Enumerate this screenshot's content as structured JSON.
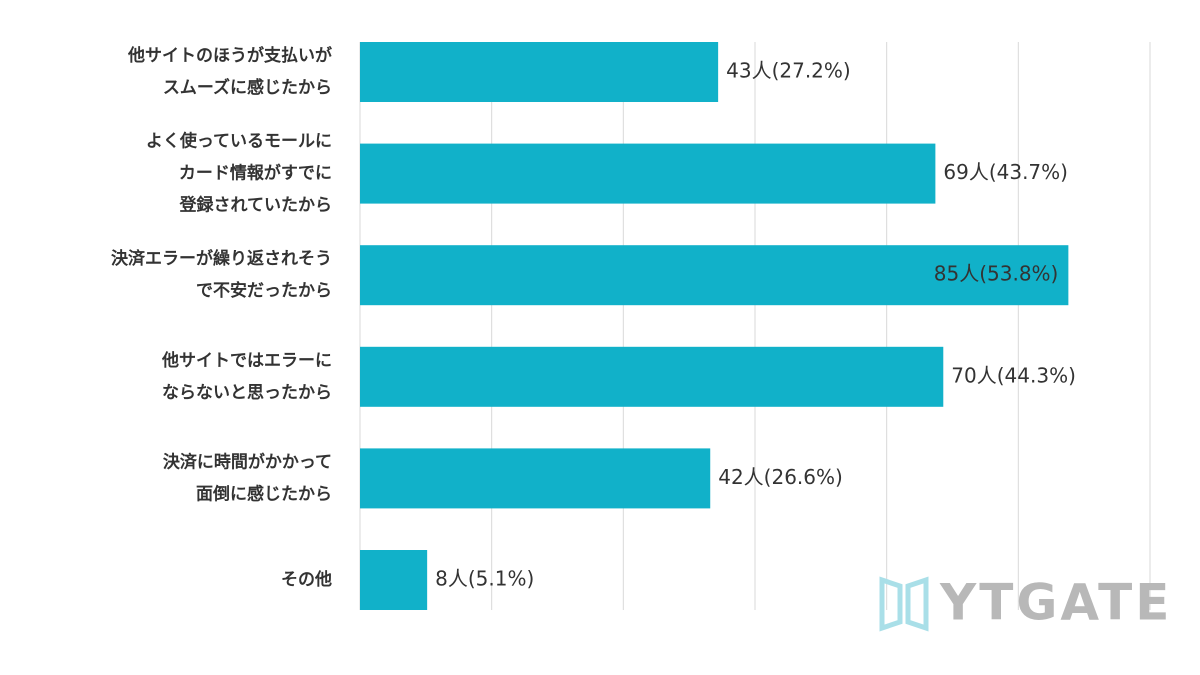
{
  "chart_data": {
    "type": "bar",
    "orientation": "horizontal",
    "categories": [
      [
        "他サイトのほうが支払いが",
        "スムーズに感じたから"
      ],
      [
        "よく使っているモールに",
        "カード情報がすでに",
        "登録されていたから"
      ],
      [
        "決済エラーが繰り返されそう",
        "で不安だったから"
      ],
      [
        "他サイトではエラーに",
        "ならないと思ったから"
      ],
      [
        "決済に時間がかかって",
        "面倒に感じたから"
      ],
      [
        "その他"
      ]
    ],
    "values": [
      27.2,
      43.7,
      53.8,
      44.3,
      26.6,
      5.1
    ],
    "value_labels": [
      "43人(27.2%)",
      "69人(43.7%)",
      "85人(53.8%)",
      "70人(44.3%)",
      "42人(26.6%)",
      "8人(5.1%)"
    ],
    "color": "#11b1c9",
    "xlim": [
      0,
      60
    ],
    "xticks": [
      0,
      10,
      20,
      30,
      40,
      50,
      60
    ],
    "grid": true,
    "watermark": "YTGATE"
  }
}
